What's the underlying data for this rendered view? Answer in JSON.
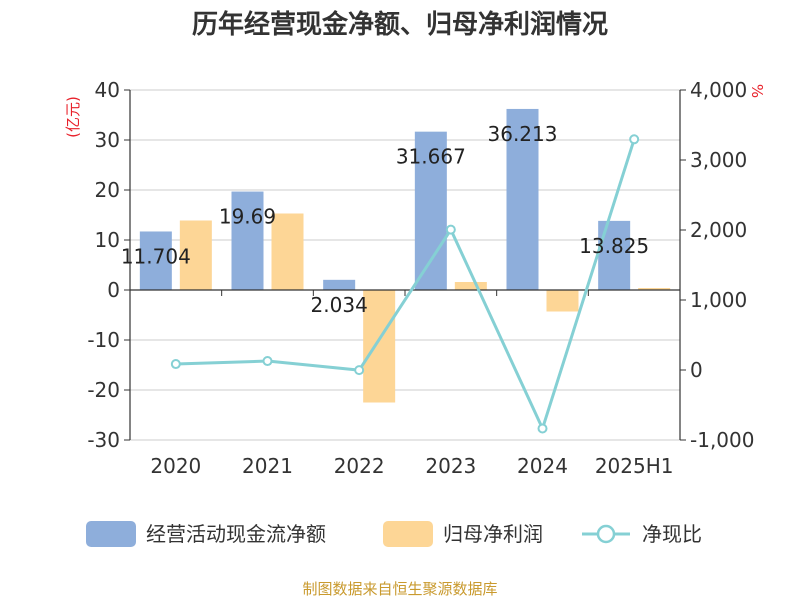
{
  "chart_data": {
    "type": "bar",
    "title": "历年经营现金净额、归母净利润情况",
    "categories": [
      "2020",
      "2021",
      "2022",
      "2023",
      "2024",
      "2025H1"
    ],
    "series": [
      {
        "name": "经营活动现金流净额",
        "type": "bar",
        "axis": "left",
        "values": [
          11.704,
          19.69,
          2.034,
          31.667,
          36.213,
          13.825
        ],
        "labels": [
          "11.704",
          "19.69",
          "2.034",
          "31.667",
          "36.213",
          "13.825"
        ]
      },
      {
        "name": "归母净利润",
        "type": "bar",
        "axis": "left",
        "values": [
          13.9,
          15.3,
          -22.5,
          1.6,
          -4.3,
          0.4
        ]
      },
      {
        "name": "净现比",
        "type": "line",
        "axis": "right",
        "values": [
          85,
          128,
          -2,
          2005,
          -836,
          3296
        ]
      }
    ],
    "left_axis": {
      "unit": "(亿元)",
      "range": [
        -30,
        40
      ],
      "ticks": [
        40,
        30,
        20,
        10,
        0,
        -10,
        -20,
        -30
      ],
      "tick_labels": [
        "40",
        "30",
        "20",
        "10",
        "0",
        "-10",
        "-20",
        "-30"
      ]
    },
    "right_axis": {
      "unit": "%",
      "range": [
        -1000,
        4000
      ],
      "ticks": [
        4000,
        3000,
        2000,
        1000,
        0,
        -1000
      ],
      "tick_labels": [
        "4,000",
        "3,000",
        "2,000",
        "1,000",
        "0",
        "-1,000"
      ]
    },
    "grid": true,
    "legend_position": "bottom",
    "source": "制图数据来自恒生聚源数据库"
  },
  "colors": {
    "bar1": "#8eaedb",
    "bar2": "#fdd696",
    "line": "#85d0d4",
    "grid": "#cccccc",
    "unit": "#e8202a",
    "source": "#c99a2e"
  }
}
